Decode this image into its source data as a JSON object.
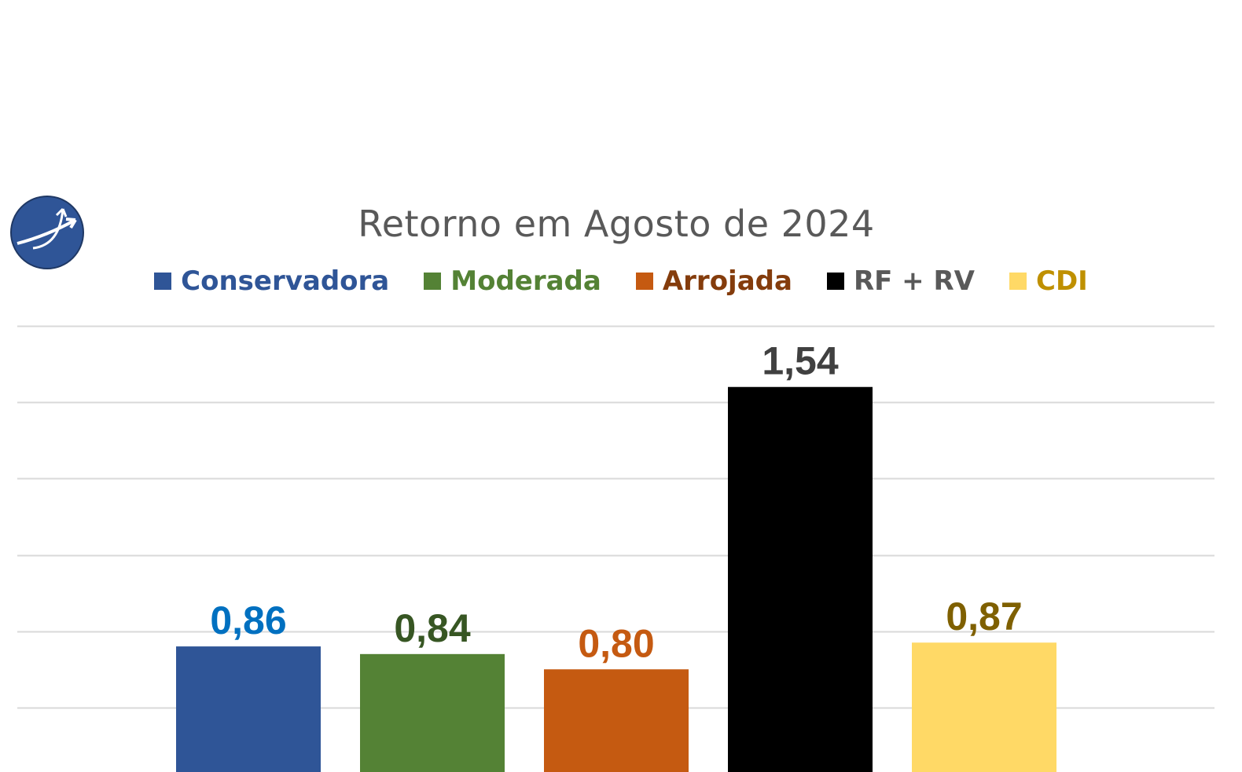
{
  "chart_data": {
    "type": "bar",
    "title": "Retorno em Agosto de 2024",
    "categories": [
      "Conservadora",
      "Moderada",
      "Arrojada",
      "RF + RV",
      "CDI"
    ],
    "values": [
      0.86,
      0.84,
      0.8,
      1.54,
      0.87
    ],
    "value_labels": [
      "0,86",
      "0,84",
      "0,80",
      "1,54",
      "0,87"
    ],
    "bar_colors": [
      "#2F5597",
      "#548235",
      "#C55A11",
      "#000000",
      "#FFD966"
    ],
    "legend_text_colors": [
      "#2F5597",
      "#548235",
      "#843C0C",
      "#595959",
      "#BF9000"
    ],
    "value_label_colors": [
      "#0070C0",
      "#375623",
      "#C55A11",
      "#404040",
      "#7F6000"
    ],
    "ylim": [
      0.5,
      1.7
    ],
    "grid": true,
    "legend_position": "top"
  }
}
